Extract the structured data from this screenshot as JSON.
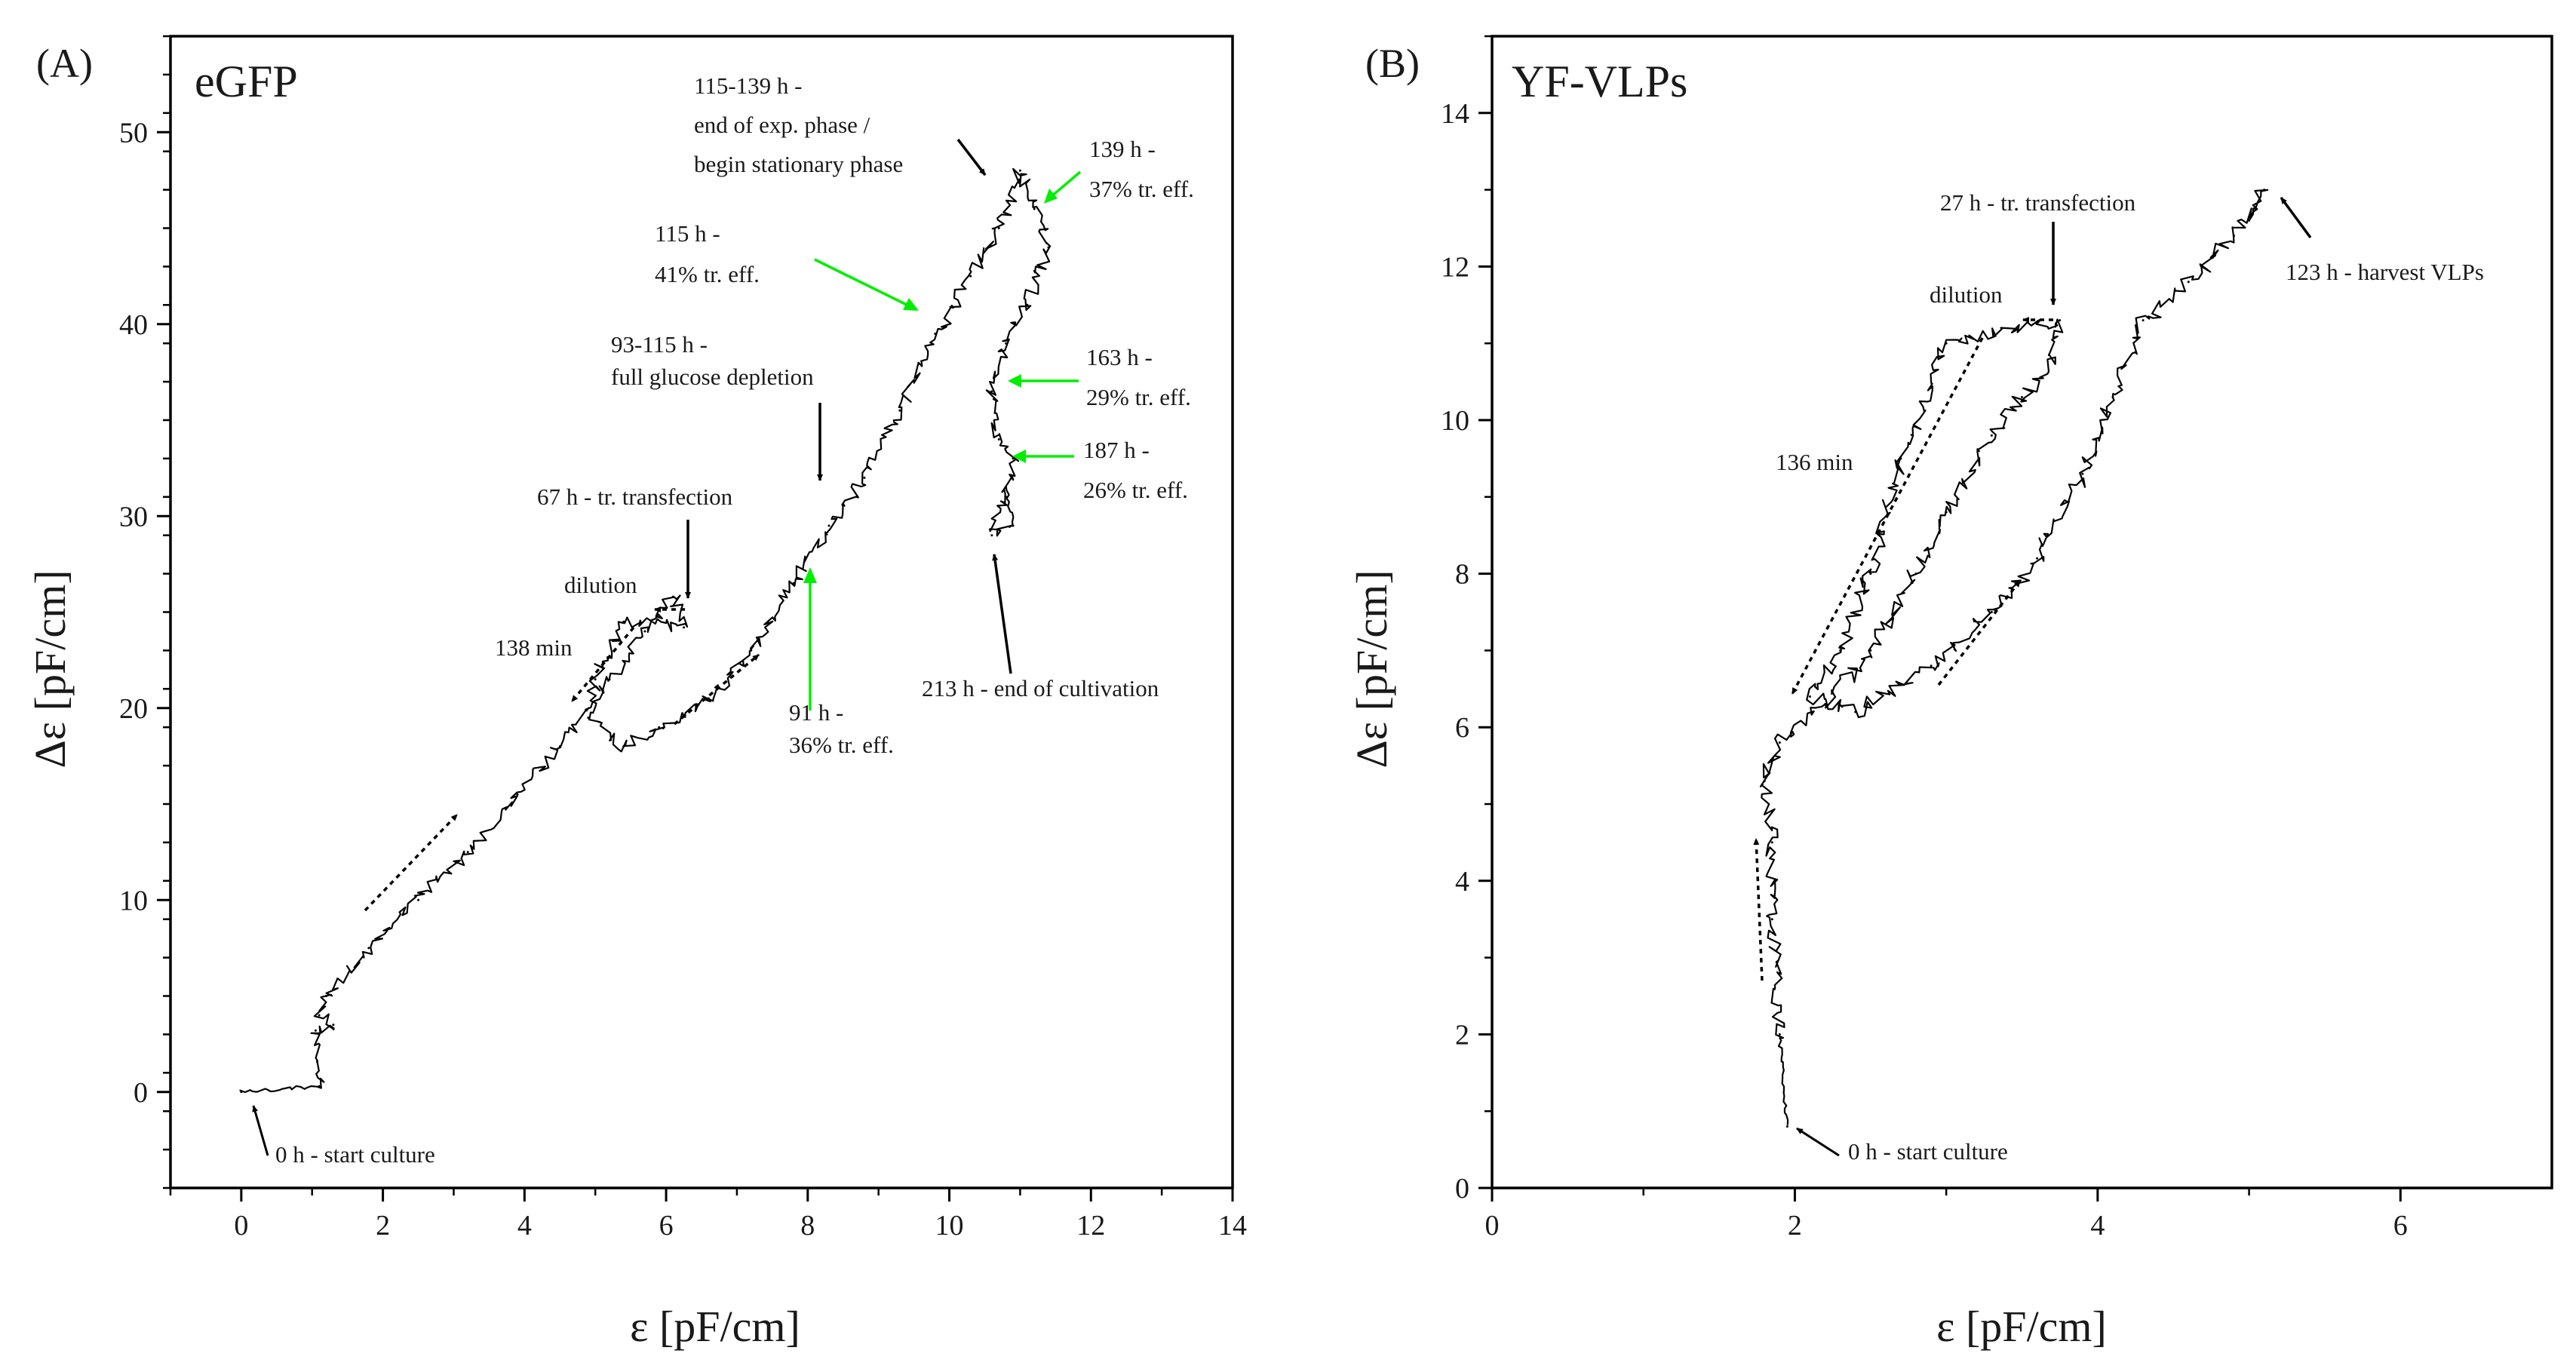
{
  "figure": {
    "background": "#ffffff",
    "ink": "#000000",
    "highlight": "#00ee00"
  },
  "chart_data": [
    {
      "type": "line",
      "panel_label": "(A)",
      "title": "eGFP",
      "xlabel": "ε [pF/cm]",
      "ylabel": "Δε [pF/cm]",
      "xlim": [
        -1,
        14
      ],
      "ylim": [
        -5,
        55
      ],
      "xticks": [
        0,
        2,
        4,
        6,
        8,
        10,
        12,
        14
      ],
      "yticks": [
        0,
        10,
        20,
        30,
        40,
        50
      ],
      "series": [
        {
          "name": "trajectory",
          "points": [
            [
              0,
              0
            ],
            [
              1.1,
              0.3
            ],
            [
              1.05,
              3.2
            ],
            [
              1.3,
              3.5
            ],
            [
              1.1,
              4.0
            ],
            [
              1.2,
              5.0
            ],
            [
              1.8,
              7.5
            ],
            [
              2.5,
              10.0
            ],
            [
              3.2,
              12.5
            ],
            [
              3.9,
              15.5
            ],
            [
              4.5,
              18.0
            ],
            [
              5.2,
              21.5
            ],
            [
              5.7,
              24.0
            ],
            [
              6.1,
              25.8
            ],
            [
              6.25,
              24.2
            ],
            [
              5.4,
              24.5
            ],
            [
              5.0,
              21.5
            ],
            [
              4.9,
              19.5
            ],
            [
              5.4,
              18.0
            ],
            [
              5.9,
              19.0
            ],
            [
              6.6,
              20.5
            ],
            [
              7.2,
              23.0
            ],
            [
              7.8,
              26.5
            ],
            [
              8.3,
              29.5
            ],
            [
              8.8,
              32.0
            ],
            [
              9.3,
              35.5
            ],
            [
              9.8,
              39.5
            ],
            [
              10.3,
              42.5
            ],
            [
              10.7,
              45.0
            ],
            [
              11.0,
              48.0
            ],
            [
              11.2,
              46.0
            ],
            [
              11.4,
              44.0
            ],
            [
              11.1,
              41.0
            ],
            [
              10.8,
              39.0
            ],
            [
              10.6,
              36.5
            ],
            [
              10.7,
              34.0
            ],
            [
              10.9,
              33.0
            ],
            [
              10.8,
              31.0
            ],
            [
              10.6,
              29.0
            ],
            [
              10.9,
              29.5
            ],
            [
              10.8,
              31.5
            ]
          ]
        }
      ],
      "annotations": [
        {
          "lines": [
            "0 h - start culture"
          ],
          "color": "black"
        },
        {
          "lines": [
            "67 h - tr. transfection"
          ],
          "color": "black"
        },
        {
          "lines": [
            "dilution"
          ],
          "color": "black"
        },
        {
          "lines": [
            "138 min"
          ],
          "color": "black"
        },
        {
          "lines": [
            "93-115 h -",
            "full glucose depletion"
          ],
          "color": "black"
        },
        {
          "lines": [
            "91 h -",
            "36% tr. eff."
          ],
          "color": "green"
        },
        {
          "lines": [
            "115 h -",
            "41% tr. eff."
          ],
          "color": "green"
        },
        {
          "lines": [
            "115-139 h -",
            "end of exp. phase /",
            "begin stationary phase"
          ],
          "color": "black"
        },
        {
          "lines": [
            "139 h -",
            "37% tr. eff."
          ],
          "color": "green"
        },
        {
          "lines": [
            "163 h -",
            "29% tr. eff."
          ],
          "color": "green"
        },
        {
          "lines": [
            "187 h -",
            "26% tr. eff."
          ],
          "color": "green"
        },
        {
          "lines": [
            "213 h - end of cultivation"
          ],
          "color": "black"
        }
      ]
    },
    {
      "type": "line",
      "panel_label": "(B)",
      "title": "YF-VLPs",
      "xlabel": "ε [pF/cm]",
      "ylabel": "Δε [pF/cm]",
      "xlim": [
        0,
        7
      ],
      "ylim": [
        0,
        15
      ],
      "xticks": [
        0,
        2,
        4,
        6
      ],
      "yticks": [
        0,
        2,
        4,
        6,
        8,
        10,
        12,
        14
      ],
      "series": [
        {
          "name": "trajectory",
          "points": [
            [
              1.95,
              0.8
            ],
            [
              1.9,
              2.0
            ],
            [
              1.85,
              3.5
            ],
            [
              1.85,
              4.5
            ],
            [
              1.8,
              5.3
            ],
            [
              1.9,
              5.8
            ],
            [
              2.2,
              6.3
            ],
            [
              2.5,
              7.0
            ],
            [
              2.8,
              8.0
            ],
            [
              3.0,
              8.8
            ],
            [
              3.3,
              9.8
            ],
            [
              3.5,
              10.3
            ],
            [
              3.7,
              10.8
            ],
            [
              3.75,
              11.3
            ],
            [
              3.0,
              11.0
            ],
            [
              2.7,
              9.5
            ],
            [
              2.5,
              8.0
            ],
            [
              2.3,
              7.0
            ],
            [
              2.1,
              6.4
            ],
            [
              2.4,
              6.2
            ],
            [
              2.9,
              6.8
            ],
            [
              3.3,
              7.5
            ],
            [
              3.6,
              8.2
            ],
            [
              3.9,
              9.3
            ],
            [
              4.1,
              10.3
            ],
            [
              4.3,
              11.3
            ],
            [
              4.6,
              11.8
            ],
            [
              4.9,
              12.4
            ],
            [
              5.1,
              13.0
            ],
            [
              5.0,
              12.6
            ]
          ]
        }
      ],
      "annotations": [
        {
          "lines": [
            "0 h - start culture"
          ],
          "color": "black"
        },
        {
          "lines": [
            "27 h - tr. transfection"
          ],
          "color": "black"
        },
        {
          "lines": [
            "dilution"
          ],
          "color": "black"
        },
        {
          "lines": [
            "136 min"
          ],
          "color": "black"
        },
        {
          "lines": [
            "123 h - harvest VLPs"
          ],
          "color": "black"
        }
      ]
    }
  ]
}
